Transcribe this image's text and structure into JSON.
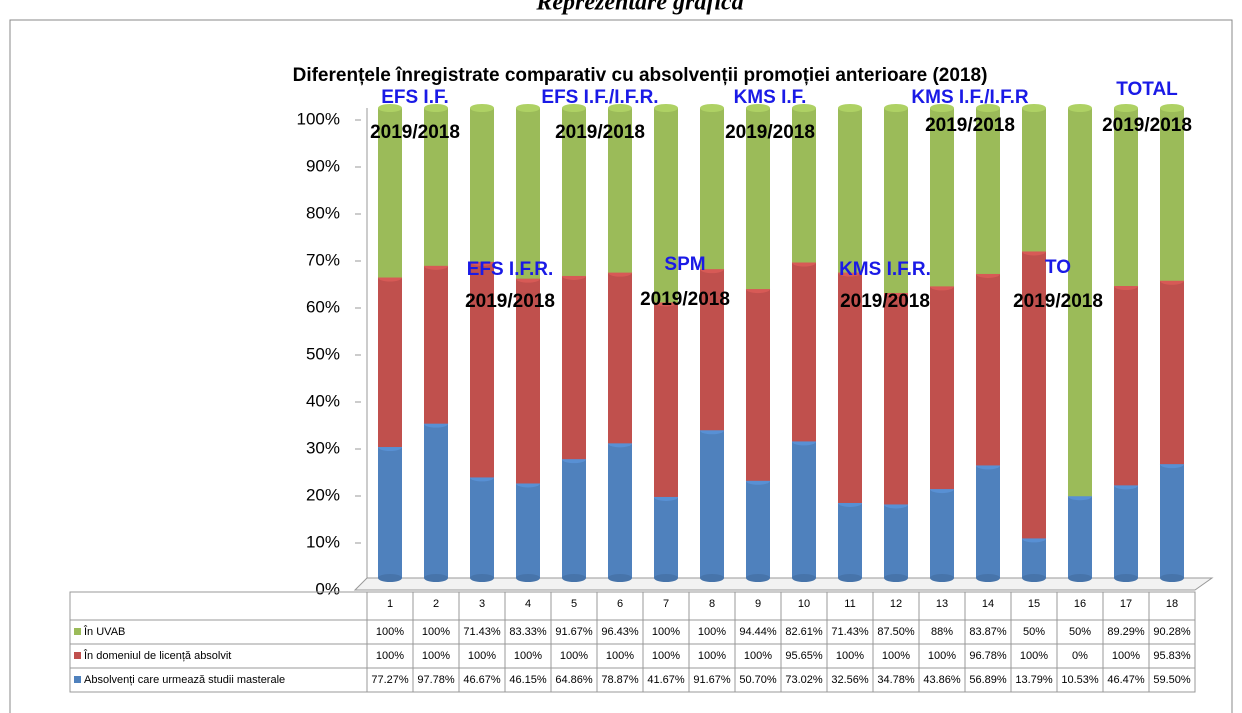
{
  "chart_data": {
    "type": "stacked_percent_bar",
    "heading": "Reprezentare grafică",
    "title": "Diferențele înregistrate comparativ cu absolvenții promoției anterioare (2018)",
    "categories": [
      "1",
      "2",
      "3",
      "4",
      "5",
      "6",
      "7",
      "8",
      "9",
      "10",
      "11",
      "12",
      "13",
      "14",
      "15",
      "16",
      "17",
      "18"
    ],
    "series": [
      {
        "name": "În UVAB",
        "color": "#9bbb59",
        "values": [
          100,
          100,
          71.43,
          83.33,
          91.67,
          96.43,
          100,
          100,
          94.44,
          82.61,
          71.43,
          87.5,
          88,
          83.87,
          50,
          50,
          89.29,
          90.28
        ],
        "value_labels": [
          "100%",
          "100%",
          "71.43%",
          "83.33%",
          "91.67%",
          "96.43%",
          "100%",
          "100%",
          "94.44%",
          "82.61%",
          "71.43%",
          "87.50%",
          "88%",
          "83.87%",
          "50%",
          "50%",
          "89.29%",
          "90.28%"
        ]
      },
      {
        "name": "În domeniul de licență absolvit",
        "color": "#c0504d",
        "values": [
          100,
          100,
          100,
          100,
          100,
          100,
          100,
          100,
          100,
          95.65,
          100,
          100,
          100,
          96.78,
          100,
          0,
          100,
          95.83
        ],
        "value_labels": [
          "100%",
          "100%",
          "100%",
          "100%",
          "100%",
          "100%",
          "100%",
          "100%",
          "100%",
          "95.65%",
          "100%",
          "100%",
          "100%",
          "96.78%",
          "100%",
          "0%",
          "100%",
          "95.83%"
        ]
      },
      {
        "name": "Absolvenți care urmează studii masterale",
        "color": "#4f81bd",
        "values": [
          77.27,
          97.78,
          46.67,
          46.15,
          64.86,
          78.87,
          41.67,
          91.67,
          50.7,
          73.02,
          32.56,
          34.78,
          43.86,
          56.89,
          13.79,
          10.53,
          46.47,
          59.5
        ],
        "value_labels": [
          "77.27%",
          "97.78%",
          "46.67%",
          "46.15%",
          "64.86%",
          "78.87%",
          "41.67%",
          "91.67%",
          "50.70%",
          "73.02%",
          "32.56%",
          "34.78%",
          "43.86%",
          "56.89%",
          "13.79%",
          "10.53%",
          "46.47%",
          "59.50%"
        ]
      }
    ],
    "ylim": [
      0,
      100
    ],
    "yticks": [
      {
        "value": 0,
        "label": "0%"
      },
      {
        "value": 10,
        "label": "10%"
      },
      {
        "value": 20,
        "label": "20%"
      },
      {
        "value": 30,
        "label": "30%"
      },
      {
        "value": 40,
        "label": "40%"
      },
      {
        "value": 50,
        "label": "50%"
      },
      {
        "value": 60,
        "label": "60%"
      },
      {
        "value": 70,
        "label": "70%"
      },
      {
        "value": 80,
        "label": "80%"
      },
      {
        "value": 90,
        "label": "90%"
      },
      {
        "value": 100,
        "label": "100%"
      }
    ],
    "grid": false,
    "annotations": [
      {
        "group": "EFS I.F.",
        "period": "2019/2018"
      },
      {
        "group": "EFS I.F.R.",
        "period": "2019/2018"
      },
      {
        "group": "EFS I.F./I.F.R.",
        "period": "2019/2018"
      },
      {
        "group": "SPM",
        "period": "2019/2018"
      },
      {
        "group": "KMS I.F.",
        "period": "2019/2018"
      },
      {
        "group": "KMS I.F.R.",
        "period": "2019/2018"
      },
      {
        "group": "KMS I.F./I.F.R",
        "period": "2019/2018"
      },
      {
        "group": "TO",
        "period": "2019/2018"
      },
      {
        "group": "TOTAL",
        "period": "2019/2018"
      }
    ]
  }
}
